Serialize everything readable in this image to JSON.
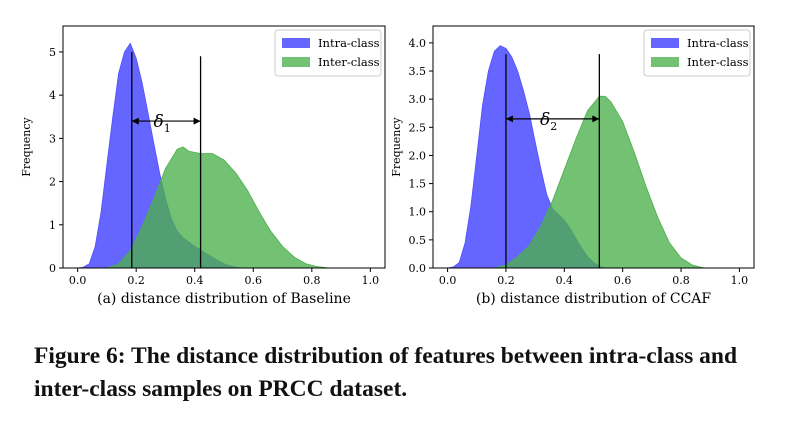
{
  "caption": "Figure 6: The distance distribution of features between intra-class and inter-class samples on PRCC dataset.",
  "chart_data": [
    {
      "type": "area",
      "subtitle": "(a) distance distribution of Baseline",
      "ylabel": "Frequency",
      "xlim": [
        -0.05,
        1.05
      ],
      "ylim": [
        0,
        5.6
      ],
      "xticks": [
        "0.0",
        "0.2",
        "0.4",
        "0.6",
        "0.8",
        "1.0"
      ],
      "yticks": [
        "0",
        "1",
        "2",
        "3",
        "4",
        "5"
      ],
      "legend_position": "top-right",
      "series": [
        {
          "name": "Intra-class",
          "color": "#5050ff",
          "x": [
            0.0,
            0.02,
            0.04,
            0.06,
            0.08,
            0.1,
            0.12,
            0.14,
            0.16,
            0.18,
            0.2,
            0.22,
            0.24,
            0.26,
            0.28,
            0.3,
            0.32,
            0.34,
            0.36,
            0.38,
            0.4,
            0.42,
            0.44,
            0.46,
            0.48,
            0.5,
            0.52,
            0.54,
            0.56
          ],
          "values": [
            0,
            0.02,
            0.1,
            0.5,
            1.3,
            2.4,
            3.5,
            4.5,
            5.0,
            5.2,
            4.85,
            4.3,
            3.6,
            2.9,
            2.2,
            1.6,
            1.15,
            0.85,
            0.7,
            0.6,
            0.5,
            0.42,
            0.33,
            0.25,
            0.17,
            0.1,
            0.05,
            0.02,
            0
          ]
        },
        {
          "name": "Inter-class",
          "color": "#4caf4c",
          "x": [
            0.1,
            0.14,
            0.18,
            0.22,
            0.26,
            0.3,
            0.34,
            0.36,
            0.38,
            0.42,
            0.46,
            0.5,
            0.54,
            0.58,
            0.62,
            0.66,
            0.7,
            0.74,
            0.78,
            0.82,
            0.86
          ],
          "values": [
            0,
            0.1,
            0.4,
            0.95,
            1.6,
            2.3,
            2.75,
            2.8,
            2.7,
            2.65,
            2.65,
            2.5,
            2.2,
            1.8,
            1.3,
            0.85,
            0.5,
            0.25,
            0.1,
            0.03,
            0
          ]
        }
      ],
      "annotations": [
        {
          "type": "vline",
          "x": 0.185,
          "ymax": 5.0
        },
        {
          "type": "vline",
          "x": 0.42,
          "ymax": 4.9
        },
        {
          "type": "double-arrow",
          "x1": 0.185,
          "x2": 0.42,
          "y": 3.4,
          "label": "δ",
          "sub": "1"
        }
      ]
    },
    {
      "type": "area",
      "subtitle": "(b) distance distribution of CCAF",
      "ylabel": "Frequency",
      "xlim": [
        -0.05,
        1.05
      ],
      "ylim": [
        0,
        4.3
      ],
      "xticks": [
        "0.0",
        "0.2",
        "0.4",
        "0.6",
        "0.8",
        "1.0"
      ],
      "yticks": [
        "0.0",
        "0.5",
        "1.0",
        "1.5",
        "2.0",
        "2.5",
        "3.0",
        "3.5",
        "4.0"
      ],
      "legend_position": "top-right",
      "series": [
        {
          "name": "Intra-class",
          "color": "#5050ff",
          "x": [
            0.0,
            0.02,
            0.04,
            0.06,
            0.08,
            0.1,
            0.12,
            0.14,
            0.16,
            0.18,
            0.2,
            0.22,
            0.24,
            0.26,
            0.28,
            0.3,
            0.32,
            0.34,
            0.36,
            0.38,
            0.4,
            0.42,
            0.44,
            0.46,
            0.48,
            0.5,
            0.52,
            0.54
          ],
          "values": [
            0,
            0.02,
            0.1,
            0.45,
            1.1,
            2.0,
            2.9,
            3.5,
            3.85,
            3.95,
            3.9,
            3.75,
            3.5,
            3.15,
            2.75,
            2.25,
            1.75,
            1.3,
            1.05,
            0.95,
            0.85,
            0.7,
            0.52,
            0.35,
            0.2,
            0.1,
            0.03,
            0
          ]
        },
        {
          "name": "Inter-class",
          "color": "#4caf4c",
          "x": [
            0.16,
            0.2,
            0.24,
            0.28,
            0.32,
            0.36,
            0.4,
            0.44,
            0.48,
            0.52,
            0.54,
            0.56,
            0.6,
            0.64,
            0.68,
            0.72,
            0.76,
            0.8,
            0.84,
            0.88
          ],
          "values": [
            0,
            0.05,
            0.2,
            0.4,
            0.75,
            1.2,
            1.75,
            2.3,
            2.8,
            3.05,
            3.05,
            2.95,
            2.6,
            2.05,
            1.45,
            0.9,
            0.45,
            0.18,
            0.05,
            0
          ]
        }
      ],
      "annotations": [
        {
          "type": "vline",
          "x": 0.2,
          "ymax": 3.8
        },
        {
          "type": "vline",
          "x": 0.52,
          "ymax": 3.8
        },
        {
          "type": "double-arrow",
          "x1": 0.2,
          "x2": 0.52,
          "y": 2.65,
          "label": "δ",
          "sub": "2"
        }
      ]
    }
  ]
}
